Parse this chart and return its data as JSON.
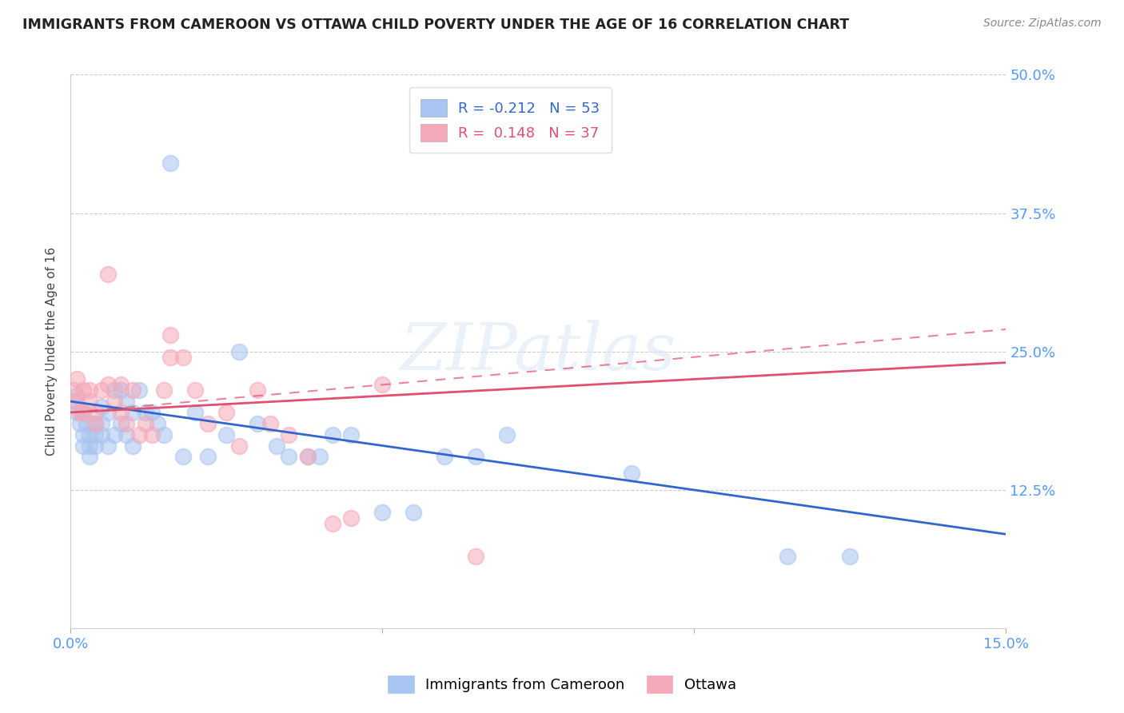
{
  "title": "IMMIGRANTS FROM CAMEROON VS OTTAWA CHILD POVERTY UNDER THE AGE OF 16 CORRELATION CHART",
  "source": "Source: ZipAtlas.com",
  "ylabel": "Child Poverty Under the Age of 16",
  "xlim": [
    0.0,
    0.15
  ],
  "ylim": [
    0.0,
    0.5
  ],
  "yticks": [
    0.0,
    0.125,
    0.25,
    0.375,
    0.5
  ],
  "ytick_labels": [
    "",
    "12.5%",
    "25.0%",
    "37.5%",
    "50.0%"
  ],
  "xtick_labels": [
    "0.0%",
    "",
    "",
    "15.0%"
  ],
  "blue_color": "#a8c4f0",
  "pink_color": "#f5a8b8",
  "blue_line_color": "#3366cc",
  "pink_line_color": "#e05070",
  "legend_blue_R": "-0.212",
  "legend_blue_N": "53",
  "legend_pink_R": "0.148",
  "legend_pink_N": "37",
  "title_color": "#222222",
  "axis_label_color": "#5599ff",
  "watermark": "ZIPatlas",
  "blue_scatter_x": [
    0.0005,
    0.001,
    0.001,
    0.0015,
    0.002,
    0.002,
    0.002,
    0.0025,
    0.003,
    0.003,
    0.003,
    0.004,
    0.004,
    0.004,
    0.005,
    0.005,
    0.005,
    0.006,
    0.006,
    0.007,
    0.007,
    0.008,
    0.008,
    0.009,
    0.009,
    0.01,
    0.01,
    0.011,
    0.012,
    0.013,
    0.014,
    0.015,
    0.016,
    0.018,
    0.02,
    0.022,
    0.025,
    0.027,
    0.03,
    0.033,
    0.035,
    0.038,
    0.04,
    0.042,
    0.045,
    0.05,
    0.055,
    0.06,
    0.065,
    0.07,
    0.09,
    0.115,
    0.125
  ],
  "blue_scatter_y": [
    0.205,
    0.21,
    0.195,
    0.185,
    0.175,
    0.165,
    0.195,
    0.185,
    0.175,
    0.165,
    0.155,
    0.185,
    0.175,
    0.165,
    0.2,
    0.185,
    0.175,
    0.195,
    0.165,
    0.215,
    0.175,
    0.215,
    0.185,
    0.205,
    0.175,
    0.195,
    0.165,
    0.215,
    0.195,
    0.195,
    0.185,
    0.175,
    0.42,
    0.155,
    0.195,
    0.155,
    0.175,
    0.25,
    0.185,
    0.165,
    0.155,
    0.155,
    0.155,
    0.175,
    0.175,
    0.105,
    0.105,
    0.155,
    0.155,
    0.175,
    0.14,
    0.065,
    0.065
  ],
  "pink_scatter_x": [
    0.0005,
    0.001,
    0.001,
    0.0015,
    0.002,
    0.002,
    0.003,
    0.003,
    0.004,
    0.004,
    0.005,
    0.006,
    0.006,
    0.007,
    0.008,
    0.008,
    0.009,
    0.01,
    0.011,
    0.012,
    0.013,
    0.015,
    0.016,
    0.016,
    0.018,
    0.02,
    0.022,
    0.025,
    0.027,
    0.03,
    0.032,
    0.035,
    0.038,
    0.042,
    0.045,
    0.05,
    0.065
  ],
  "pink_scatter_y": [
    0.215,
    0.225,
    0.205,
    0.195,
    0.215,
    0.195,
    0.215,
    0.205,
    0.195,
    0.185,
    0.215,
    0.32,
    0.22,
    0.205,
    0.22,
    0.195,
    0.185,
    0.215,
    0.175,
    0.185,
    0.175,
    0.215,
    0.265,
    0.245,
    0.245,
    0.215,
    0.185,
    0.195,
    0.165,
    0.215,
    0.185,
    0.175,
    0.155,
    0.095,
    0.1,
    0.22,
    0.065
  ],
  "blue_line_x": [
    0.0,
    0.15
  ],
  "blue_line_y": [
    0.205,
    0.085
  ],
  "pink_line_x": [
    0.0,
    0.15
  ],
  "pink_line_y": [
    0.195,
    0.24
  ],
  "pink_dashed_line_x": [
    0.0,
    0.15
  ],
  "pink_dashed_line_y": [
    0.195,
    0.27
  ]
}
